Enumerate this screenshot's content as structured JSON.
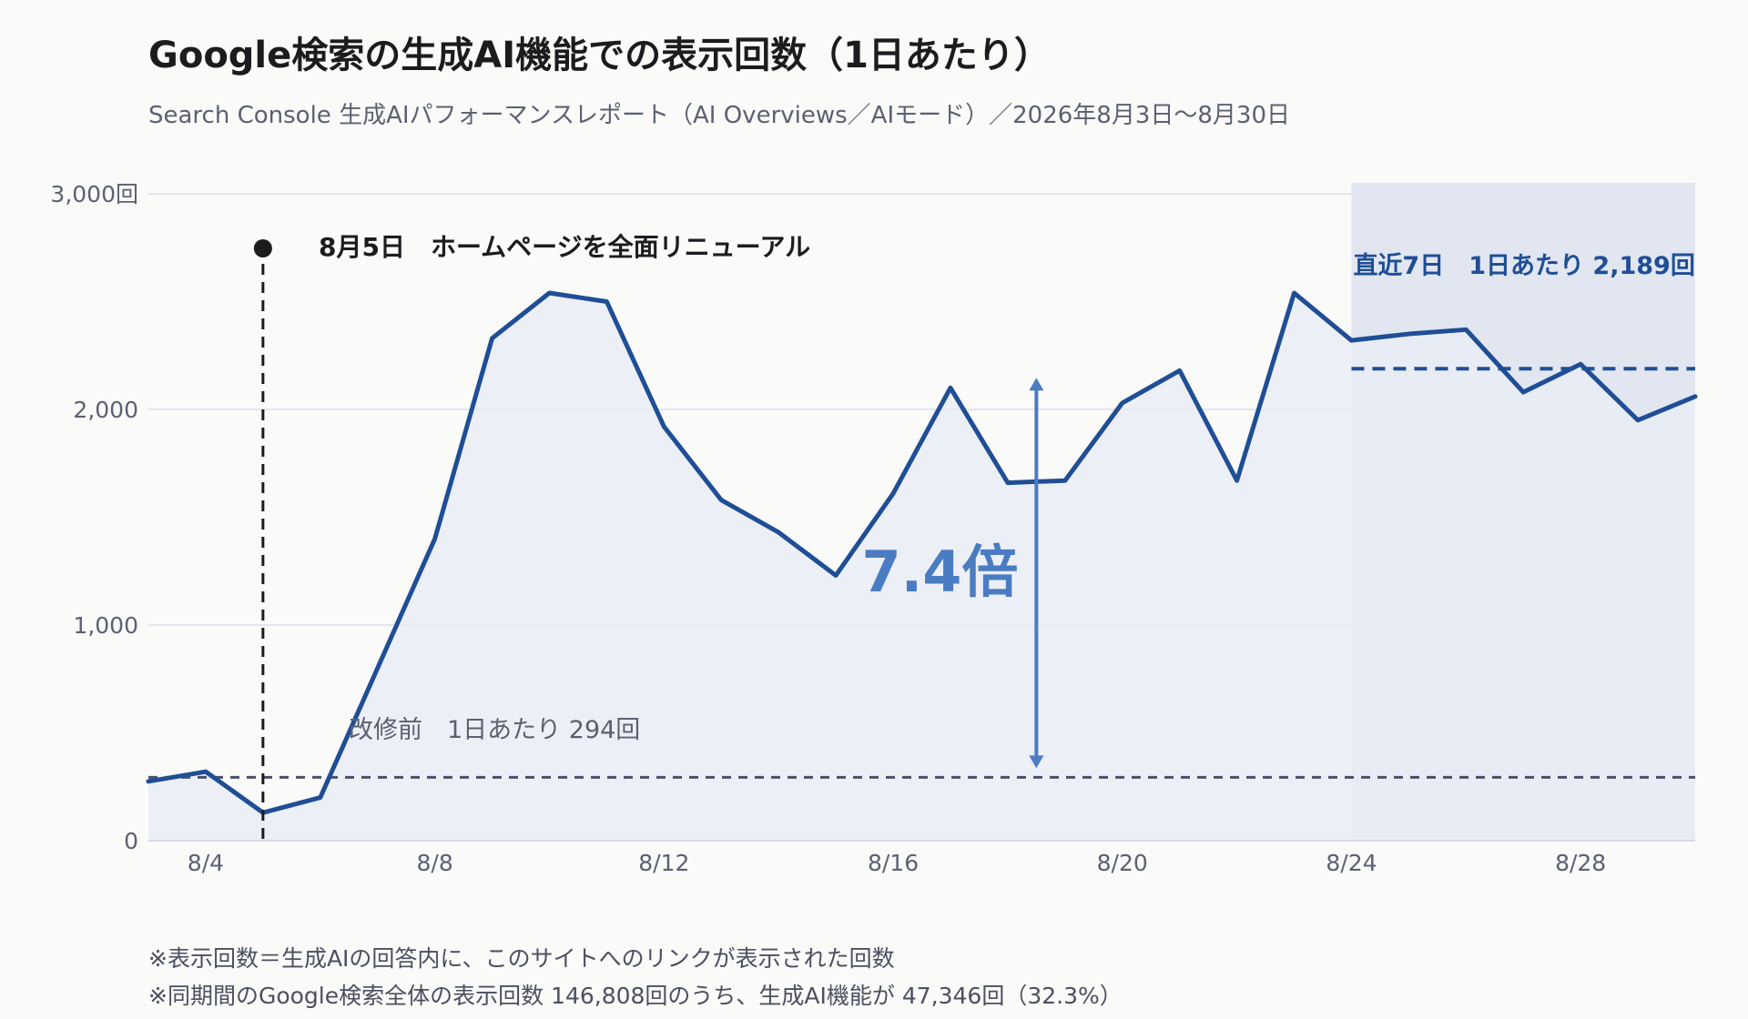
{
  "title": "Google検索の生成AI機能での表示回数（1日あたり）",
  "subtitle": "Search Console 生成AIパフォーマンスレポート（AI Overviews／AIモード）／2026年8月3日〜8月30日",
  "footnotes": [
    "※表示回数＝生成AIの回答内に、このサイトへのリンクが表示された回数",
    "※同期間のGoogle検索全体の表示回数 146,808回のうち、生成AI機能が 47,346回（32.3%）"
  ],
  "colors": {
    "line": "#1f4e96",
    "area": "#e9ecf5",
    "recent_band": "#e1e6f1",
    "baseline": "#4a5068",
    "arrow": "#4a7cc2",
    "event": "#1c1c1f",
    "grid": "#e3e5ee"
  },
  "chart_data": {
    "type": "area",
    "x": [
      3,
      4,
      5,
      6,
      7,
      8,
      9,
      10,
      11,
      12,
      13,
      14,
      15,
      16,
      17,
      18,
      19,
      20,
      21,
      22,
      23,
      24,
      25,
      26,
      27,
      28,
      29,
      30
    ],
    "values": [
      275,
      320,
      130,
      200,
      800,
      1400,
      2330,
      2540,
      2500,
      1920,
      1580,
      1430,
      1230,
      1610,
      2100,
      1660,
      1670,
      2030,
      2180,
      1670,
      2540,
      2320,
      2350,
      2370,
      2080,
      2210,
      1950,
      2060
    ],
    "xlim": [
      3,
      30
    ],
    "ylim": [
      0,
      3000
    ],
    "x_ticks": [
      4,
      8,
      12,
      16,
      20,
      24,
      28
    ],
    "x_tick_labels": [
      "8/4",
      "8/8",
      "8/12",
      "8/16",
      "8/20",
      "8/24",
      "8/28"
    ],
    "y_ticks": [
      0,
      1000,
      2000,
      3000
    ],
    "y_tick_labels": [
      "0",
      "1,000",
      "2,000",
      "3,000回"
    ],
    "grid": true,
    "event": {
      "x": 5,
      "label": "8月5日　ホームページを全面リニューアル"
    },
    "baseline": {
      "value": 294,
      "label": "改修前　1日あたり 294回"
    },
    "recent": {
      "from": 24,
      "to": 30,
      "value": 2189,
      "label": "直近7日　1日あたり 2,189回"
    },
    "multiplier": {
      "x": 18.5,
      "from": 294,
      "to": 2189,
      "label": "7.4倍"
    }
  }
}
